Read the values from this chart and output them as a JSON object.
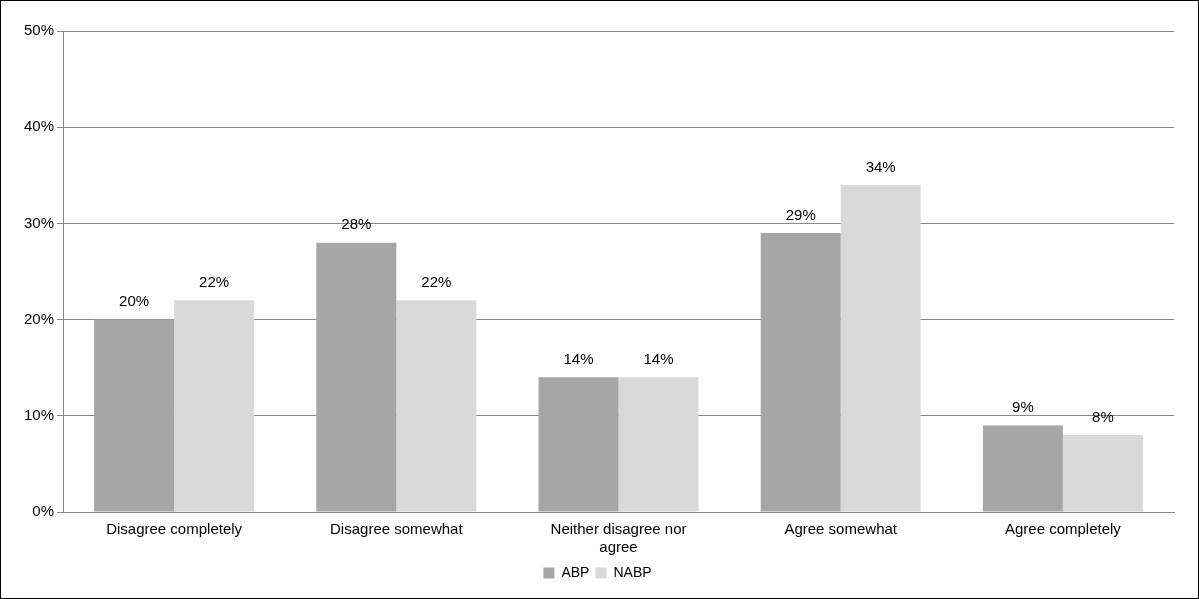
{
  "chart_data": {
    "type": "bar",
    "categories": [
      "Disagree completely",
      "Disagree somewhat",
      "Neither disagree nor agree",
      "Agree somewhat",
      "Agree completely"
    ],
    "series": [
      {
        "name": "ABP",
        "color": "#a6a6a6",
        "values": [
          20,
          28,
          14,
          29,
          9
        ],
        "value_labels": [
          "20%",
          "28%",
          "14%",
          "29%",
          "9%"
        ]
      },
      {
        "name": "NABP",
        "color": "#d9d9d9",
        "values": [
          22,
          22,
          14,
          34,
          8
        ],
        "value_labels": [
          "22%",
          "22%",
          "14%",
          "34%",
          "8%"
        ]
      }
    ],
    "ylim": [
      0,
      50
    ],
    "yticks": [
      {
        "value": 0,
        "label": "0%"
      },
      {
        "value": 10,
        "label": "10%"
      },
      {
        "value": 20,
        "label": "20%"
      },
      {
        "value": 30,
        "label": "30%"
      },
      {
        "value": 40,
        "label": "40%"
      },
      {
        "value": 50,
        "label": "50%"
      }
    ],
    "grid": "y",
    "legend": "bottom"
  }
}
